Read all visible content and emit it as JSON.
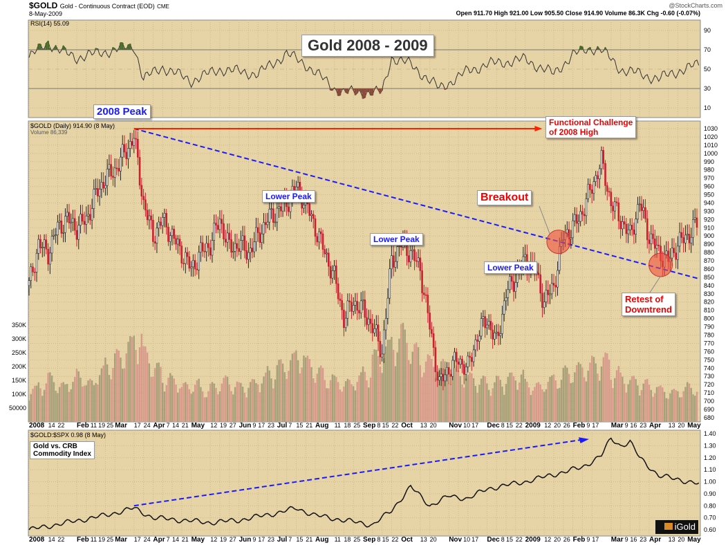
{
  "header": {
    "symbol": "$GOLD",
    "desc": "Gold - Continuous Contract (EOD)",
    "exchange": "CME",
    "date": "8-May-2009",
    "credit": "@StockCharts.com",
    "ohlc": "Open 911.70  High 921.00  Low 905.50  Close 914.90  Volume 86.3K  Chg -0.60 (-0.07%)"
  },
  "title": "Gold 2008 - 2009",
  "rsi_label": "RSI(14) 55.09",
  "price_label": "$GOLD (Daily) 914.90 (8 May)",
  "volume_label": "Volume 86,339",
  "ratio_label": "$GOLD:$SPX 0.98 (8 May)",
  "ratio_box": [
    "Gold vs. CRB",
    "Commodity Index"
  ],
  "logo": "iGold",
  "annotations": {
    "peak": "2008 Peak",
    "lower_peak": "Lower Peak",
    "breakout": "Breakout",
    "challenge": [
      "Functional Challenge",
      "of 2008 High"
    ],
    "retest": [
      "Retest of",
      "Downtrend"
    ]
  },
  "colors": {
    "panel": "#e6d3a6",
    "up": "#222222",
    "down": "#cc1f2f",
    "trend": "#1a1aff",
    "arrow": "#ff2200",
    "accent": "#cc0000"
  },
  "chart_data": [
    {
      "type": "line",
      "name": "RSI(14)",
      "ylim": [
        0,
        100
      ],
      "yticks": [
        10,
        30,
        50,
        70,
        90
      ],
      "x_weeks": [
        0,
        2,
        3,
        5,
        8,
        11,
        12,
        14,
        17,
        20,
        24,
        27,
        29,
        32,
        33,
        37,
        38,
        40,
        43,
        46,
        48,
        52,
        55,
        57,
        59,
        60,
        62,
        66,
        68,
        70.3
      ],
      "values": [
        62,
        78,
        70,
        62,
        68,
        74,
        40,
        52,
        38,
        50,
        45,
        66,
        55,
        30,
        26,
        26,
        62,
        55,
        30,
        48,
        55,
        60,
        45,
        65,
        72,
        70,
        50,
        40,
        48,
        55
      ]
    },
    {
      "type": "candlestick",
      "name": "$GOLD Daily",
      "ylim": [
        680,
        1030
      ],
      "yticks": [
        680,
        690,
        700,
        710,
        720,
        730,
        740,
        750,
        760,
        770,
        780,
        790,
        800,
        810,
        820,
        830,
        840,
        850,
        860,
        870,
        880,
        890,
        900,
        910,
        920,
        930,
        940,
        950,
        960,
        970,
        980,
        990,
        1000,
        1010,
        1020,
        1030
      ],
      "weekly_close": [
        840,
        890,
        880,
        910,
        920,
        910,
        920,
        950,
        970,
        980,
        1000,
        1020,
        940,
        900,
        920,
        900,
        880,
        860,
        880,
        890,
        920,
        885,
        890,
        880,
        900,
        920,
        930,
        940,
        960,
        940,
        910,
        880,
        850,
        800,
        820,
        810,
        790,
        760,
        870,
        890,
        880,
        860,
        790,
        720,
        740,
        750,
        740,
        780,
        800,
        770,
        830,
        850,
        870,
        860,
        820,
        840,
        900,
        910,
        930,
        960,
        990,
        940,
        920,
        900,
        940,
        900,
        880,
        870,
        890,
        900,
        915
      ]
    },
    {
      "type": "bar",
      "name": "Volume",
      "yticks_labels": [
        "50000",
        "100K",
        "150K",
        "200K",
        "250K",
        "300K",
        "350K"
      ],
      "yticks": [
        50,
        100,
        150,
        200,
        250,
        300,
        350
      ],
      "weekly_volume_k": [
        110,
        130,
        150,
        120,
        140,
        160,
        130,
        170,
        200,
        220,
        260,
        290,
        230,
        180,
        150,
        140,
        120,
        130,
        110,
        120,
        140,
        130,
        120,
        130,
        150,
        170,
        190,
        210,
        230,
        200,
        170,
        150,
        140,
        130,
        150,
        170,
        220,
        250,
        280,
        300,
        240,
        210,
        200,
        190,
        170,
        160,
        150,
        140,
        130,
        140,
        150,
        160,
        130,
        120,
        140,
        150,
        170,
        180,
        190,
        200,
        210,
        170,
        150,
        140,
        130,
        120,
        110,
        100,
        110,
        120,
        110
      ]
    },
    {
      "type": "line",
      "name": "$GOLD:$SPX",
      "ylim": [
        0.6,
        1.4
      ],
      "yticks": [
        0.6,
        0.7,
        0.8,
        0.9,
        1.0,
        1.1,
        1.2,
        1.3,
        1.4
      ],
      "x_weeks": [
        0,
        4,
        8,
        11,
        13,
        16,
        19,
        22,
        26,
        28,
        30,
        33,
        36,
        37,
        38,
        40,
        42,
        44,
        46,
        48,
        52,
        56,
        58,
        60,
        61,
        62,
        63,
        64,
        66,
        68,
        70.3
      ],
      "values": [
        0.6,
        0.66,
        0.72,
        0.78,
        0.7,
        0.68,
        0.66,
        0.68,
        0.74,
        0.78,
        0.72,
        0.68,
        0.64,
        0.7,
        0.76,
        0.96,
        0.8,
        0.88,
        0.86,
        0.94,
        1.0,
        1.08,
        1.12,
        1.22,
        1.36,
        1.3,
        1.33,
        1.2,
        1.05,
        1.02,
        0.98
      ]
    }
  ],
  "x_labels": [
    {
      "t": "2008",
      "w": 0,
      "b": 1
    },
    {
      "t": "14",
      "w": 2
    },
    {
      "t": "22",
      "w": 3
    },
    {
      "t": "Feb",
      "w": 5,
      "b": 1
    },
    {
      "t": "11",
      "w": 6
    },
    {
      "t": "19",
      "w": 7
    },
    {
      "t": "25",
      "w": 8
    },
    {
      "t": "Mar",
      "w": 9,
      "b": 1
    },
    {
      "t": "17",
      "w": 11
    },
    {
      "t": "24",
      "w": 12
    },
    {
      "t": "Apr",
      "w": 13,
      "b": 1
    },
    {
      "t": "7",
      "w": 14
    },
    {
      "t": "14",
      "w": 15
    },
    {
      "t": "21",
      "w": 16
    },
    {
      "t": "May",
      "w": 17,
      "b": 1
    },
    {
      "t": "12",
      "w": 19
    },
    {
      "t": "19",
      "w": 20
    },
    {
      "t": "27",
      "w": 21
    },
    {
      "t": "Jun",
      "w": 22,
      "b": 1
    },
    {
      "t": "9",
      "w": 23
    },
    {
      "t": "17",
      "w": 24
    },
    {
      "t": "23",
      "w": 25
    },
    {
      "t": "Jul",
      "w": 26,
      "b": 1
    },
    {
      "t": "7",
      "w": 27
    },
    {
      "t": "15",
      "w": 28
    },
    {
      "t": "21",
      "w": 29
    },
    {
      "t": "Aug",
      "w": 30,
      "b": 1
    },
    {
      "t": "11",
      "w": 32
    },
    {
      "t": "18",
      "w": 33
    },
    {
      "t": "25",
      "w": 34
    },
    {
      "t": "Sep",
      "w": 35,
      "b": 1
    },
    {
      "t": "8",
      "w": 36
    },
    {
      "t": "15",
      "w": 37
    },
    {
      "t": "22",
      "w": 38
    },
    {
      "t": "Oct",
      "w": 39,
      "b": 1
    },
    {
      "t": "13",
      "w": 41
    },
    {
      "t": "20",
      "w": 42
    },
    {
      "t": "Nov",
      "w": 44,
      "b": 1
    },
    {
      "t": "10",
      "w": 45
    },
    {
      "t": "17",
      "w": 46
    },
    {
      "t": "Dec",
      "w": 48,
      "b": 1
    },
    {
      "t": "8",
      "w": 49
    },
    {
      "t": "15",
      "w": 50
    },
    {
      "t": "22",
      "w": 51
    },
    {
      "t": "2009",
      "w": 52,
      "b": 1
    },
    {
      "t": "12",
      "w": 54
    },
    {
      "t": "20",
      "w": 55
    },
    {
      "t": "26",
      "w": 56
    },
    {
      "t": "Feb",
      "w": 57,
      "b": 1
    },
    {
      "t": "9",
      "w": 58
    },
    {
      "t": "17",
      "w": 59
    },
    {
      "t": "Mar",
      "w": 61,
      "b": 1
    },
    {
      "t": "9",
      "w": 62
    },
    {
      "t": "16",
      "w": 63
    },
    {
      "t": "23",
      "w": 64
    },
    {
      "t": "Apr",
      "w": 65,
      "b": 1
    },
    {
      "t": "13",
      "w": 67
    },
    {
      "t": "20",
      "w": 68
    },
    {
      "t": "May",
      "w": 69,
      "b": 1
    }
  ]
}
